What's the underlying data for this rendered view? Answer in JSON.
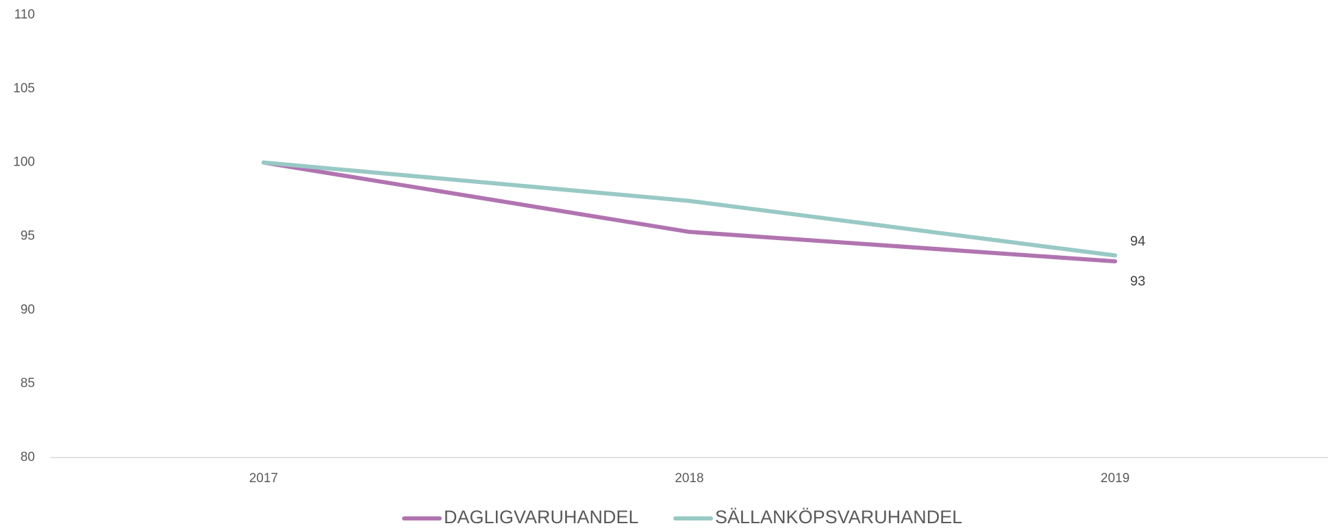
{
  "chart_data": {
    "type": "line",
    "categories": [
      "2017",
      "2018",
      "2019"
    ],
    "series": [
      {
        "name": "DAGLIGVARUHANDEL",
        "color": "#b174b0",
        "values": [
          100,
          95.3,
          93.3
        ],
        "value_labels": [
          null,
          null,
          "93"
        ]
      },
      {
        "name": "SÄLLANKÖPSVARUHANDEL",
        "color": "#98c9c5",
        "values": [
          100,
          97.4,
          93.7
        ],
        "value_labels": [
          null,
          null,
          "94"
        ]
      }
    ],
    "ylim": [
      80,
      110
    ],
    "yticks": [
      80,
      85,
      90,
      95,
      100,
      105,
      110
    ],
    "grid": false,
    "legend": "bottom"
  }
}
